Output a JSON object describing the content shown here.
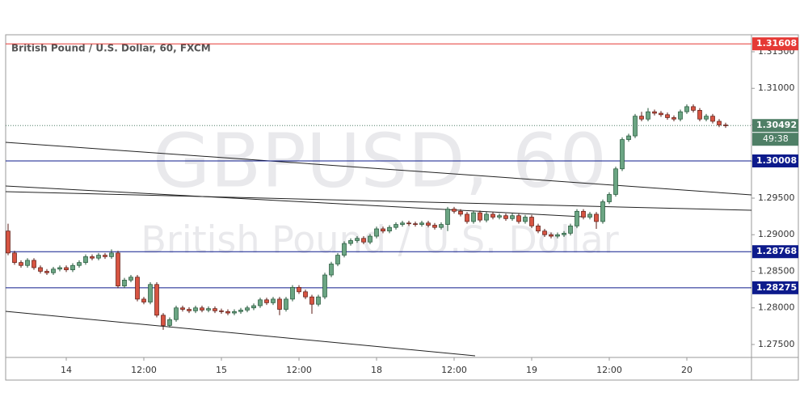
{
  "chart_data": {
    "type": "candlestick",
    "title": "British Pound / U.S. Dollar, 60, FXCM",
    "watermark": "GBPUSD, 60",
    "watermark_subtitle": "British Pound / U.S. Dollar",
    "categories": [
      null,
      null,
      null,
      null,
      null,
      null,
      null,
      null,
      null,
      "14",
      null,
      null,
      null,
      null,
      null,
      null,
      null,
      null,
      null,
      null,
      null,
      "12:00",
      null,
      null,
      null,
      null,
      null,
      null,
      null,
      null,
      null,
      null,
      null,
      "15",
      null,
      null,
      null,
      null,
      null,
      null,
      null,
      null,
      null,
      null,
      null,
      "12:00",
      null,
      null,
      null,
      null,
      null,
      null,
      null,
      null,
      null,
      null,
      null,
      "18",
      null,
      null,
      null,
      null,
      null,
      null,
      null,
      null,
      null,
      null,
      null,
      "12:00",
      null,
      null,
      null,
      null,
      null,
      null,
      null,
      null,
      null,
      null,
      null,
      "19",
      null,
      null,
      null,
      null,
      null,
      null,
      null,
      null,
      null,
      null,
      null,
      "12:00",
      null,
      null,
      null,
      null,
      null,
      null,
      null,
      null,
      null,
      null,
      null,
      "20",
      null,
      null,
      null,
      null,
      null,
      null
    ],
    "open": [
      1.2905,
      1.2875,
      1.2862,
      1.2858,
      1.2865,
      1.2855,
      1.285,
      1.2848,
      1.2853,
      1.2855,
      1.2852,
      1.2858,
      1.2862,
      1.287,
      1.2868,
      1.2872,
      1.287,
      1.2875,
      1.283,
      1.2838,
      1.2842,
      1.2812,
      1.2808,
      1.2832,
      1.279,
      1.2776,
      1.2784,
      1.28,
      1.2798,
      1.2796,
      1.28,
      1.2797,
      1.2799,
      1.2796,
      1.2795,
      1.2793,
      1.2795,
      1.2797,
      1.28,
      1.2803,
      1.2811,
      1.2807,
      1.2812,
      1.2798,
      1.2812,
      1.2828,
      1.2822,
      1.2815,
      1.2805,
      1.2815,
      1.2845,
      1.286,
      1.2872,
      1.2888,
      1.2892,
      1.2895,
      1.289,
      1.2898,
      1.2908,
      1.2905,
      1.291,
      1.2914,
      1.2916,
      1.2915,
      1.2914,
      1.2916,
      1.2913,
      1.291,
      1.2914,
      1.2935,
      1.2932,
      1.2928,
      1.2918,
      1.293,
      1.292,
      1.2928,
      1.2924,
      1.2926,
      1.2922,
      1.2926,
      1.2918,
      1.2924,
      1.2912,
      1.2905,
      1.29,
      1.2898,
      1.29,
      1.2902,
      1.2912,
      1.2932,
      1.2924,
      1.2928,
      1.2918,
      1.2945,
      1.2955,
      1.299,
      1.303,
      1.3035,
      1.3062,
      1.3058,
      1.3068,
      1.3066,
      1.3064,
      1.306,
      1.3058,
      1.3068,
      1.3075,
      1.307,
      1.3058,
      1.3062,
      1.3055,
      1.305
    ],
    "high": [
      1.2915,
      1.2878,
      1.2865,
      1.2868,
      1.2868,
      1.2858,
      1.2853,
      1.2856,
      1.2858,
      1.2858,
      1.2861,
      1.2865,
      1.2873,
      1.2873,
      1.2875,
      1.2875,
      1.288,
      1.2878,
      1.2841,
      1.2845,
      1.2845,
      1.2815,
      1.2835,
      1.2835,
      1.2793,
      1.2787,
      1.2803,
      1.2803,
      1.2801,
      1.2803,
      1.2803,
      1.2802,
      1.2802,
      1.2799,
      1.2798,
      1.2798,
      1.28,
      1.2803,
      1.2806,
      1.2814,
      1.2814,
      1.2815,
      1.2815,
      1.2815,
      1.2831,
      1.2831,
      1.2825,
      1.2818,
      1.2818,
      1.2848,
      1.2863,
      1.2875,
      1.2891,
      1.2895,
      1.2898,
      1.2898,
      1.2901,
      1.2911,
      1.2911,
      1.2913,
      1.2917,
      1.2919,
      1.2919,
      1.2918,
      1.2919,
      1.2919,
      1.2916,
      1.2917,
      1.2938,
      1.2938,
      1.2935,
      1.2931,
      1.2933,
      1.2933,
      1.2931,
      1.2931,
      1.2929,
      1.2929,
      1.2929,
      1.2929,
      1.2927,
      1.2927,
      1.2915,
      1.2908,
      1.2903,
      1.2903,
      1.2905,
      1.2915,
      1.2935,
      1.2935,
      1.2931,
      1.2931,
      1.2948,
      1.2958,
      1.2993,
      1.3033,
      1.3038,
      1.3065,
      1.3068,
      1.3073,
      1.3071,
      1.3069,
      1.3067,
      1.3063,
      1.3071,
      1.3078,
      1.3078,
      1.3073,
      1.3065,
      1.3065,
      1.3058,
      1.3053
    ],
    "low": [
      1.2872,
      1.2859,
      1.2855,
      1.2855,
      1.2852,
      1.2847,
      1.2845,
      1.2845,
      1.285,
      1.2849,
      1.2849,
      1.2855,
      1.2859,
      1.2865,
      1.2865,
      1.2867,
      1.2867,
      1.2827,
      1.2827,
      1.2835,
      1.2809,
      1.2805,
      1.2805,
      1.2787,
      1.277,
      1.2773,
      1.2781,
      1.2795,
      1.2793,
      1.2793,
      1.2794,
      1.2794,
      1.2793,
      1.2792,
      1.279,
      1.279,
      1.2792,
      1.2794,
      1.2797,
      1.28,
      1.2804,
      1.2804,
      1.279,
      1.2795,
      1.2809,
      1.2819,
      1.2812,
      1.2792,
      1.2802,
      1.2812,
      1.2842,
      1.2857,
      1.2869,
      1.2885,
      1.2889,
      1.2887,
      1.2887,
      1.2895,
      1.2902,
      1.2902,
      1.2907,
      1.2911,
      1.2912,
      1.2911,
      1.2911,
      1.291,
      1.2907,
      1.2907,
      1.2905,
      1.2929,
      1.2925,
      1.2915,
      1.2915,
      1.2917,
      1.2917,
      1.2921,
      1.2921,
      1.2919,
      1.2919,
      1.2915,
      1.2915,
      1.2909,
      1.2902,
      1.2897,
      1.2895,
      1.2895,
      1.2897,
      1.2899,
      1.2909,
      1.2921,
      1.2921,
      1.2908,
      1.2915,
      1.2942,
      1.2952,
      1.2987,
      1.3027,
      1.3032,
      1.3055,
      1.3055,
      1.3063,
      1.3061,
      1.3057,
      1.3055,
      1.3055,
      1.3065,
      1.3067,
      1.3055,
      1.3055,
      1.3052,
      1.3047,
      1.3046
    ],
    "close": [
      1.2875,
      1.2862,
      1.2858,
      1.2865,
      1.2855,
      1.285,
      1.2848,
      1.2853,
      1.2855,
      1.2852,
      1.2858,
      1.2862,
      1.287,
      1.2868,
      1.2872,
      1.287,
      1.2875,
      1.283,
      1.2838,
      1.2842,
      1.2812,
      1.2808,
      1.2832,
      1.279,
      1.2776,
      1.2784,
      1.28,
      1.2798,
      1.2796,
      1.28,
      1.2797,
      1.2799,
      1.2796,
      1.2795,
      1.2793,
      1.2795,
      1.2797,
      1.28,
      1.2803,
      1.2811,
      1.2807,
      1.2812,
      1.2798,
      1.2812,
      1.2828,
      1.2822,
      1.2815,
      1.2805,
      1.2815,
      1.2845,
      1.286,
      1.2872,
      1.2888,
      1.2892,
      1.2895,
      1.289,
      1.2898,
      1.2908,
      1.2905,
      1.291,
      1.2914,
      1.2916,
      1.2915,
      1.2914,
      1.2916,
      1.2913,
      1.291,
      1.2914,
      1.2935,
      1.2932,
      1.2928,
      1.2918,
      1.293,
      1.292,
      1.2928,
      1.2924,
      1.2926,
      1.2922,
      1.2926,
      1.2918,
      1.2924,
      1.2912,
      1.2905,
      1.29,
      1.2898,
      1.29,
      1.2902,
      1.2912,
      1.2932,
      1.2924,
      1.2928,
      1.2918,
      1.2945,
      1.2955,
      1.299,
      1.303,
      1.3035,
      1.3062,
      1.3058,
      1.3068,
      1.3066,
      1.3064,
      1.306,
      1.3058,
      1.3068,
      1.3075,
      1.307,
      1.3058,
      1.3062,
      1.3055,
      1.305,
      1.3049
    ],
    "up_color": "#6ba583",
    "down_color": "#d75442",
    "ylim": [
      1.27323,
      1.31732
    ],
    "yticks": [
      {
        "value": 1.315,
        "label": "1.31500"
      },
      {
        "value": 1.31,
        "label": "1.31000"
      },
      {
        "value": 1.305,
        "label": "1.30500"
      },
      {
        "value": 1.3,
        "label": "1.30000"
      },
      {
        "value": 1.295,
        "label": "1.29500"
      },
      {
        "value": 1.29,
        "label": "1.29000"
      },
      {
        "value": 1.285,
        "label": "1.28500"
      },
      {
        "value": 1.28,
        "label": "1.28000"
      },
      {
        "value": 1.275,
        "label": "1.27500"
      }
    ],
    "levels": [
      {
        "value": 1.31608,
        "color": "#e53935"
      },
      {
        "value": 1.30008,
        "color": "#0d1b8c"
      },
      {
        "value": 1.28768,
        "color": "#0d1b8c"
      },
      {
        "value": 1.28275,
        "color": "#0d1b8c"
      }
    ],
    "last_price": 1.30492,
    "last_color": "#4f7f66",
    "countdown": "49:38"
  }
}
